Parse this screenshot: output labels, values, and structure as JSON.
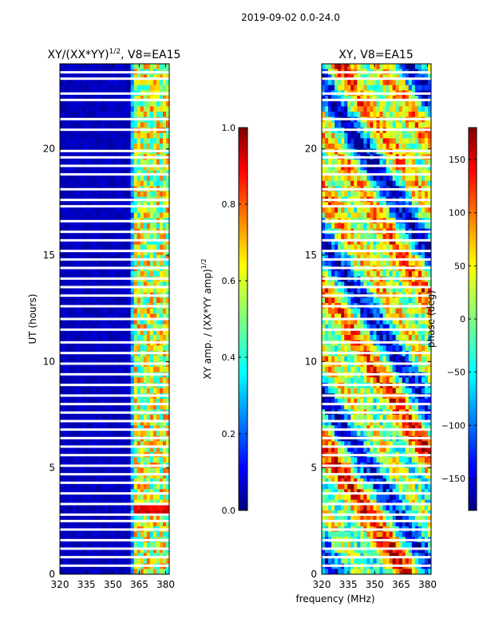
{
  "suptitle": "2019-09-02 0.0-24.0",
  "chart_data": [
    {
      "type": "heatmap",
      "title_base": "XY/(XX*YY)",
      "title_sup": "1/2",
      "title_suffix": ", V8=EA15",
      "xlabel": "",
      "ylabel": "UT (hours)",
      "xlim": [
        320,
        382
      ],
      "ylim": [
        0,
        24
      ],
      "xticks": [
        "320",
        "335",
        "350",
        "365",
        "380"
      ],
      "xtick_values": [
        320,
        335,
        350,
        365,
        380
      ],
      "yticks": [
        "0",
        "5",
        "10",
        "15",
        "20"
      ],
      "ytick_values": [
        0,
        5,
        10,
        15,
        20
      ],
      "colorbar": {
        "label_base": "XY amp. / (XX*YY amp)",
        "label_sup": "1/2",
        "range": [
          0,
          1
        ],
        "ticks": [
          "0.0",
          "0.2",
          "0.4",
          "0.6",
          "0.8",
          "1.0"
        ],
        "tick_values": [
          0.0,
          0.2,
          0.4,
          0.6,
          0.8,
          1.0
        ]
      },
      "gap_hours": [
        23.6,
        23.3,
        22.6,
        22.3,
        21.4,
        20.9,
        19.9,
        19.6,
        19.2,
        18.8,
        18.1,
        17.6,
        17.3,
        16.6,
        16.1,
        15.7,
        15.2,
        14.8,
        14.4,
        13.9,
        13.5,
        13.1,
        12.6,
        12.0,
        11.5,
        10.9,
        10.4,
        9.9,
        9.4,
        8.9,
        8.4,
        8.0,
        7.6,
        7.2,
        6.8,
        6.4,
        6.0,
        5.6,
        5.1,
        4.7,
        4.3,
        3.8,
        3.3,
        2.8,
        2.5,
        2.1,
        1.6,
        1.2,
        0.8,
        0.4
      ],
      "bright_channels_mhz": [
        363,
        364,
        366.5,
        368,
        370.5,
        372,
        374.5,
        376,
        378,
        380
      ]
    },
    {
      "type": "heatmap",
      "title": "XY, V8=EA15",
      "xlabel": "",
      "ylabel": "",
      "xlim": [
        320,
        382
      ],
      "ylim": [
        0,
        24
      ],
      "xticks": [
        "320",
        "335",
        "350",
        "365",
        "380"
      ],
      "xtick_values": [
        320,
        335,
        350,
        365,
        380
      ],
      "yticks": [
        "0",
        "5",
        "10",
        "15",
        "20"
      ],
      "ytick_values": [
        0,
        5,
        10,
        15,
        20
      ],
      "colorbar": {
        "label": "phase (deg)",
        "range": [
          -180,
          180
        ],
        "ticks": [
          "−150",
          "−100",
          "−50",
          "0",
          "50",
          "100",
          "150"
        ],
        "tick_values": [
          -150,
          -100,
          -50,
          0,
          50,
          100,
          150
        ]
      },
      "gap_hours": [
        23.6,
        23.3,
        22.6,
        22.3,
        21.4,
        20.9,
        19.9,
        19.6,
        19.2,
        18.8,
        18.1,
        17.6,
        17.3,
        16.6,
        16.1,
        15.7,
        15.2,
        14.8,
        14.4,
        13.9,
        13.5,
        13.1,
        12.6,
        12.0,
        11.5,
        10.9,
        10.4,
        9.9,
        9.4,
        8.9,
        8.4,
        8.0,
        7.6,
        7.2,
        6.8,
        6.4,
        6.0,
        5.6,
        5.1,
        4.7,
        4.3,
        3.8,
        3.3,
        2.8,
        2.5,
        2.1,
        1.6,
        1.2,
        0.8,
        0.4
      ]
    }
  ],
  "shared_xlabel": "frequency (MHz)",
  "colors": {
    "jet": [
      "#00007f",
      "#0000ff",
      "#007fff",
      "#00ffff",
      "#7fff7f",
      "#ffff00",
      "#ff7f00",
      "#ff0000",
      "#7f0000"
    ]
  }
}
